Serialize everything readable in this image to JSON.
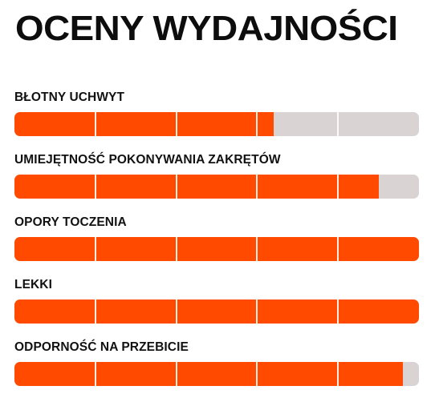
{
  "title": "OCENY WYDAJNOŚCI",
  "accent_color": "#ff4a00",
  "track_color": "#d9d4d3",
  "ratings": [
    {
      "label": "BŁOTNY UCHWYT",
      "value": 0.64
    },
    {
      "label": "UMIEJĘTNOŚĆ POKONYWANIA ZAKRĘTÓW",
      "value": 0.9
    },
    {
      "label": "OPORY TOCZENIA",
      "value": 1.0
    },
    {
      "label": "LEKKI",
      "value": 1.0
    },
    {
      "label": "ODPORNOŚĆ NA PRZEBICIE",
      "value": 0.96
    }
  ]
}
